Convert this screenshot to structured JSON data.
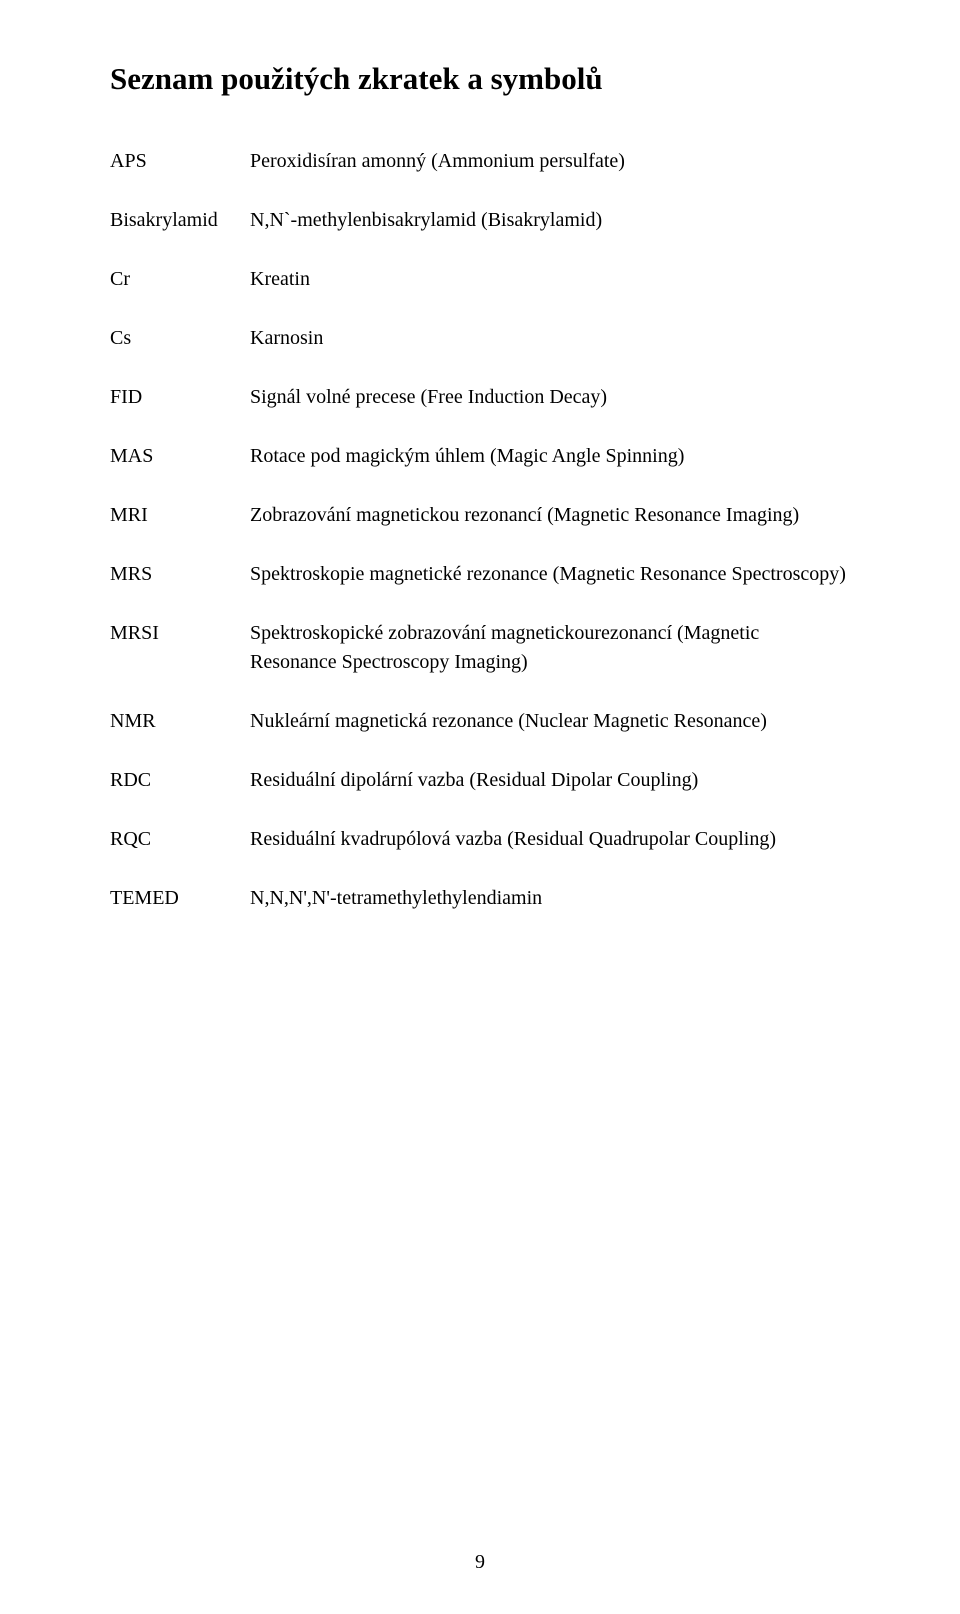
{
  "title": "Seznam použitých zkratek a symbolů",
  "entries": [
    {
      "abbr": "APS",
      "def": "Peroxidisíran amonný (Ammonium persulfate)"
    },
    {
      "abbr": "Bisakrylamid",
      "def": "N,N`-methylenbisakrylamid (Bisakrylamid)"
    },
    {
      "abbr": "Cr",
      "def": "Kreatin"
    },
    {
      "abbr": "Cs",
      "def": "Karnosin"
    },
    {
      "abbr": "FID",
      "def": "Signál volné precese (Free Induction Decay)"
    },
    {
      "abbr": "MAS",
      "def": "Rotace pod magickým úhlem (Magic Angle Spinning)"
    },
    {
      "abbr": "MRI",
      "def": "Zobrazování magnetickou rezonancí (Magnetic Resonance Imaging)"
    },
    {
      "abbr": "MRS",
      "def": "Spektroskopie magnetické rezonance (Magnetic Resonance Spectroscopy)"
    },
    {
      "abbr": "MRSI",
      "def": "Spektroskopické zobrazování magnetickourezonancí (Magnetic Resonance Spectroscopy Imaging)"
    },
    {
      "abbr": "NMR",
      "def": "Nukleární magnetická rezonance (Nuclear Magnetic Resonance)"
    },
    {
      "abbr": "RDC",
      "def": "Residuální dipolární vazba (Residual Dipolar Coupling)"
    },
    {
      "abbr": "RQC",
      "def": "Residuální kvadrupólová vazba (Residual Quadrupolar Coupling)"
    },
    {
      "abbr": "TEMED",
      "def": "N,N,N',N'-tetramethylethylendiamin"
    }
  ],
  "page_number": "9"
}
